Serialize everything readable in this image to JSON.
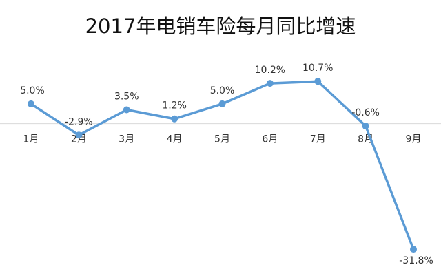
{
  "chart_data": {
    "type": "line",
    "title": "2017年电销车险每月同比增速",
    "xlabel": "",
    "ylabel": "",
    "categories": [
      "1月",
      "2月",
      "3月",
      "4月",
      "5月",
      "6月",
      "7月",
      "8月",
      "9月"
    ],
    "series": [
      {
        "values": [
          5.0,
          -2.9,
          3.5,
          1.2,
          5.0,
          10.2,
          10.7,
          -0.6,
          -31.8
        ]
      }
    ],
    "data_labels": [
      "5.0%",
      "-2.9%",
      "3.5%",
      "1.2%",
      "5.0%",
      "10.2%",
      "10.7%",
      "-0.6%",
      "-31.8%"
    ],
    "ylim": [
      -33,
      13
    ],
    "grid": false,
    "legend": "none",
    "colors": {
      "line": "#5b9bd5",
      "axis": "#d9d9d9",
      "text": "#333333",
      "title": "#111111"
    }
  }
}
